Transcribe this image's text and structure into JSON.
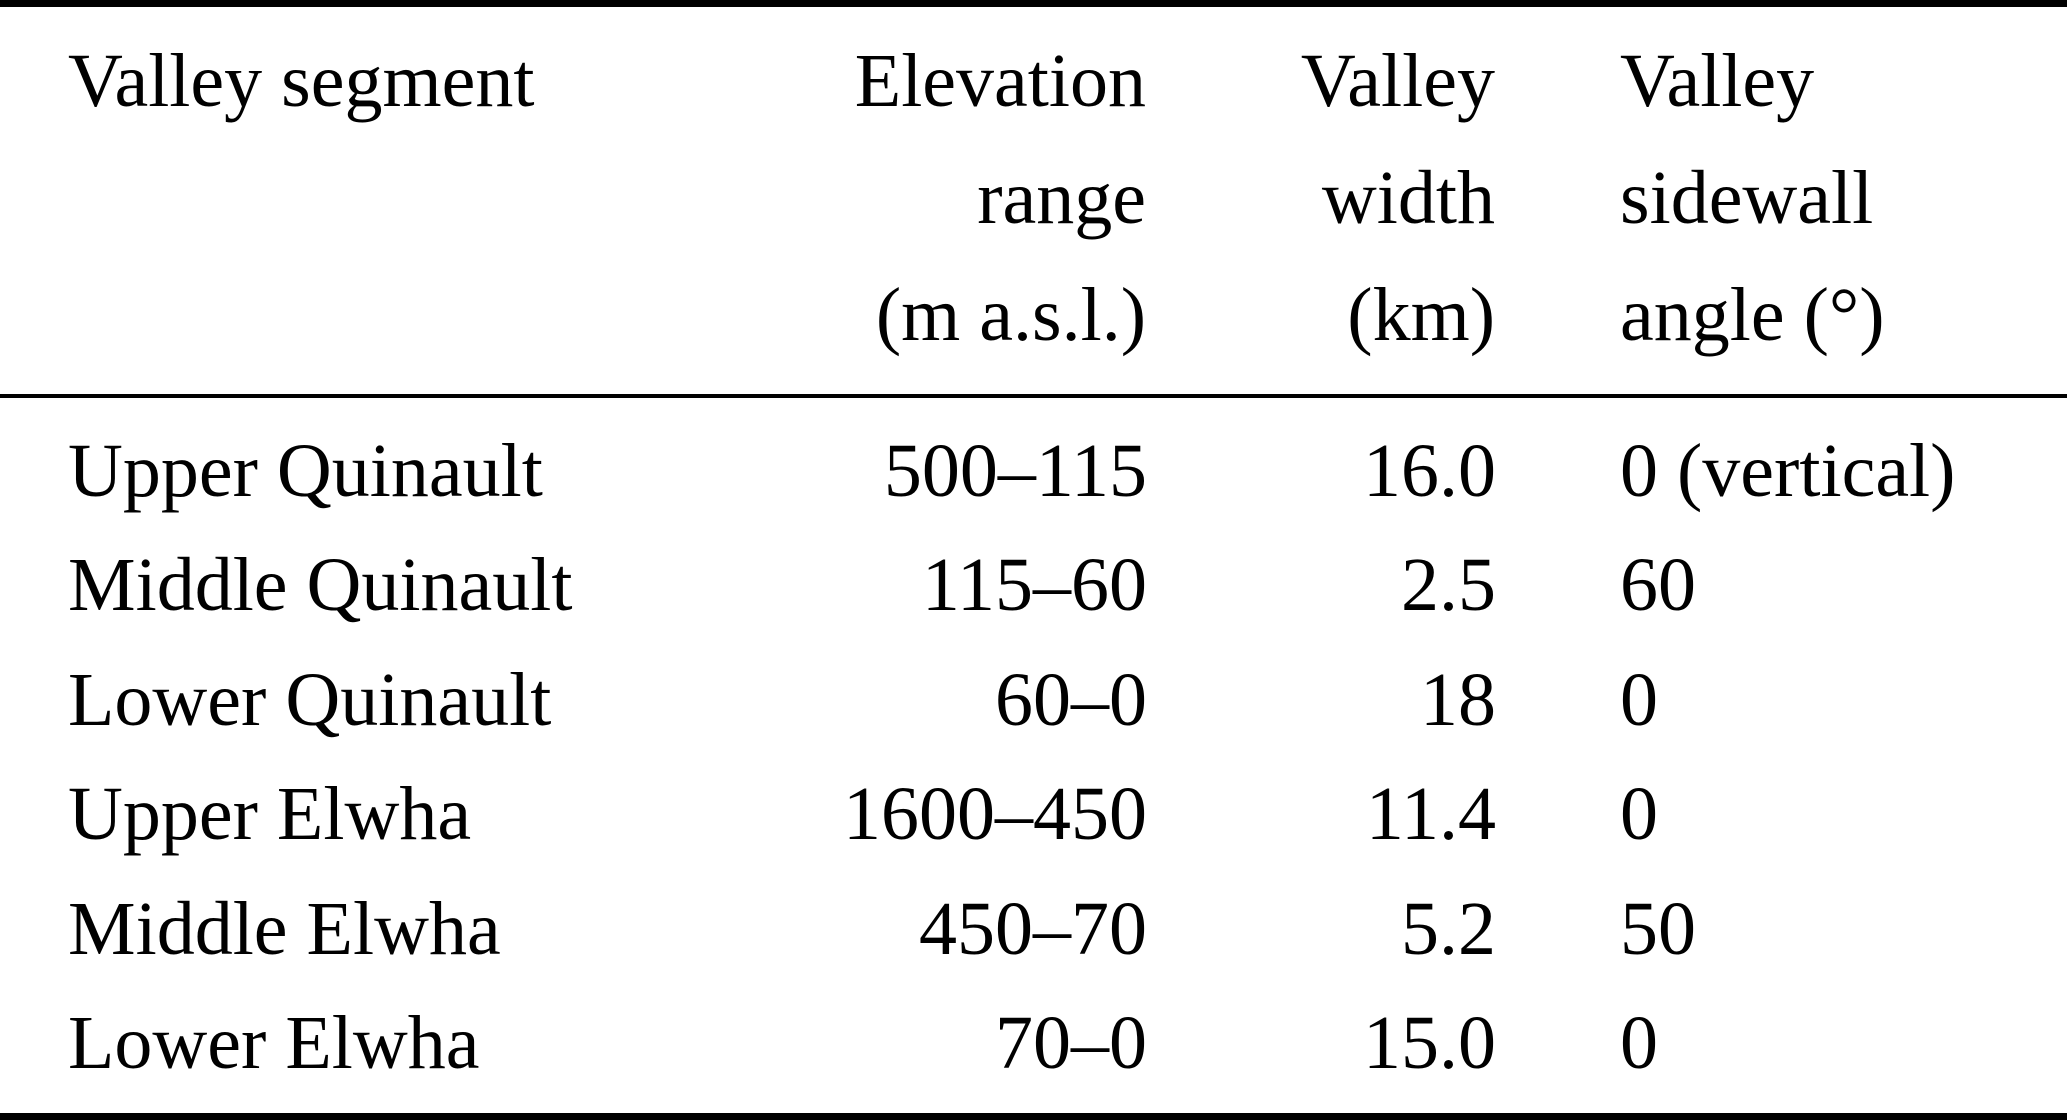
{
  "table": {
    "title": "Valley segment characteristics table",
    "colors": {
      "text": "#000000",
      "background": "#ffffff",
      "rule": "#000000"
    },
    "columns": [
      {
        "id": "segment",
        "align": "left",
        "label_lines": [
          "Valley segment",
          "",
          ""
        ]
      },
      {
        "id": "elevation_range",
        "align": "right",
        "label_lines": [
          "Elevation",
          "range",
          "(m a.s.l.)"
        ]
      },
      {
        "id": "valley_width",
        "align": "right",
        "label_lines": [
          "Valley",
          "width",
          "(km)"
        ]
      },
      {
        "id": "sidewall_angle",
        "align": "left",
        "label_lines": [
          "Valley",
          "sidewall",
          "angle (°)"
        ]
      }
    ],
    "rows": [
      {
        "segment": "Upper Quinault",
        "elevation_range": "500–115",
        "valley_width": "16.0",
        "sidewall_angle": "0 (vertical)"
      },
      {
        "segment": "Middle Quinault",
        "elevation_range": "115–60",
        "valley_width": "2.5",
        "sidewall_angle": "60"
      },
      {
        "segment": "Lower Quinault",
        "elevation_range": "60–0",
        "valley_width": "18",
        "sidewall_angle": "0"
      },
      {
        "segment": "Upper Elwha",
        "elevation_range": "1600–450",
        "valley_width": "11.4",
        "sidewall_angle": "0"
      },
      {
        "segment": "Middle Elwha",
        "elevation_range": "450–70",
        "valley_width": "5.2",
        "sidewall_angle": "50"
      },
      {
        "segment": "Lower Elwha",
        "elevation_range": "70–0",
        "valley_width": "15.0",
        "sidewall_angle": "0"
      }
    ]
  }
}
